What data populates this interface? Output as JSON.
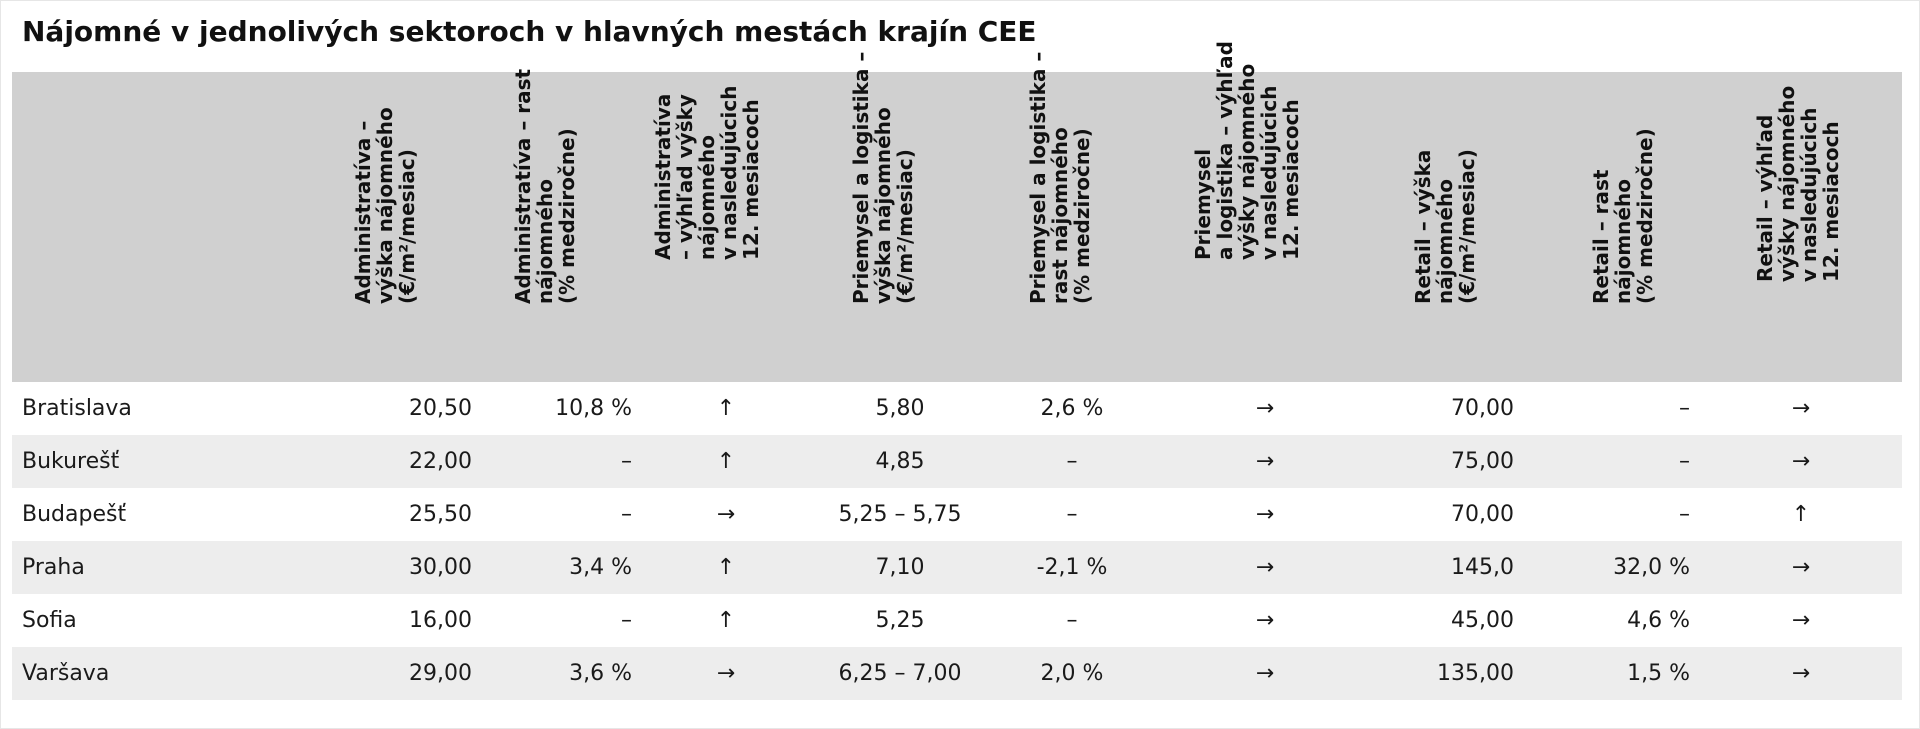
{
  "title": "Nájomné v jednolivých sektoroch v hlavných mestách krajín CEE",
  "columns": [
    "Administratíva –\nvýška nájomného\n(€/m²/mesiac)",
    "Administratíva – rast\nnájomného\n(% medziročne)",
    "Administratíva\n– výhľad výšky\nnájomného\nv nasledujúcich\n12. mesiacoch",
    "Priemysel a logistika –\nvýška nájomného\n(€/m²/mesiac)",
    "Priemysel a logistika –\nrast nájomného\n(% medziročne)",
    "Priemysel\na logistika – výhľad\nvýšky nájomného\nv nasledujúcich\n12. mesiacoch",
    "Retail – výška\nnájomného\n(€/m²/mesiac)",
    "Retail – rast\nnájomného\n(% medziročne)",
    "Retail – výhľad\nvýšky nájomného\nv nasledujúcich\n12. mesiacoch"
  ],
  "rows": [
    {
      "city": "Bratislava",
      "values": [
        "20,50",
        "10,8 %",
        "↑",
        "5,80",
        "2,6 %",
        "→",
        "70,00",
        "–",
        "→"
      ]
    },
    {
      "city": "Bukurešť",
      "values": [
        "22,00",
        "–",
        "↑",
        "4,85",
        "–",
        "→",
        "75,00",
        "–",
        "→"
      ]
    },
    {
      "city": "Budapešť",
      "values": [
        "25,50",
        "–",
        "→",
        "5,25 – 5,75",
        "–",
        "→",
        "70,00",
        "–",
        "↑"
      ]
    },
    {
      "city": "Praha",
      "values": [
        "30,00",
        "3,4 %",
        "↑",
        "7,10",
        "-2,1 %",
        "→",
        "145,0",
        "32,0 %",
        "→"
      ]
    },
    {
      "city": "Sofia",
      "values": [
        "16,00",
        "–",
        "↑",
        "5,25",
        "–",
        "→",
        "45,00",
        "4,6 %",
        "→"
      ]
    },
    {
      "city": "Varšava",
      "values": [
        "29,00",
        "3,6 %",
        "→",
        "6,25 – 7,00",
        "2,0 %",
        "→",
        "135,00",
        "1,5 %",
        "→"
      ]
    }
  ],
  "colors": {
    "header_bg": "#d0d0d0",
    "row_alt_bg": "#ededed",
    "text": "#111111"
  }
}
